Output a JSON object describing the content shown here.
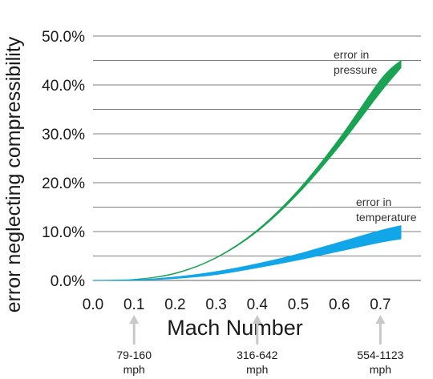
{
  "chart_data": {
    "type": "area",
    "xlabel": "Mach Number",
    "ylabel": "error neglecting compressibility",
    "xlim": [
      0,
      0.8
    ],
    "ylim": [
      0,
      50
    ],
    "x_ticks": [
      "0.0",
      "0.1",
      "0.2",
      "0.3",
      "0.4",
      "0.5",
      "0.6",
      "0.7"
    ],
    "y_ticks": [
      "0.0%",
      "10.0%",
      "20.0%",
      "30.0%",
      "40.0%",
      "50.0%"
    ],
    "grid": true,
    "series": [
      {
        "name": "error in pressure",
        "color": "#1aa353",
        "x": [
          0.0,
          0.1,
          0.2,
          0.3,
          0.4,
          0.5,
          0.6,
          0.7,
          0.75
        ],
        "lower": [
          0.0,
          0.2,
          1.4,
          4.6,
          10.0,
          17.8,
          27.5,
          38.5,
          43.5
        ],
        "upper": [
          0.0,
          0.2,
          1.5,
          4.7,
          10.3,
          18.5,
          29.0,
          41.0,
          45.0
        ]
      },
      {
        "name": "error in temperature",
        "color": "#11a6e8",
        "x": [
          0.0,
          0.1,
          0.2,
          0.3,
          0.4,
          0.5,
          0.6,
          0.7,
          0.75
        ],
        "lower": [
          0.0,
          0.05,
          0.4,
          1.2,
          2.6,
          4.2,
          6.0,
          7.8,
          8.5
        ],
        "upper": [
          0.0,
          0.1,
          0.7,
          1.8,
          3.4,
          5.4,
          7.8,
          10.2,
          11.2
        ]
      }
    ],
    "annotations": [
      {
        "lines": [
          "error in",
          "pressure"
        ]
      },
      {
        "lines": [
          "error in",
          "temperature"
        ]
      }
    ],
    "speed_markers": [
      {
        "mach": 0.1,
        "range": "79-160",
        "unit": "mph"
      },
      {
        "mach": 0.4,
        "range": "316-642",
        "unit": "mph"
      },
      {
        "mach": 0.7,
        "range": "554-1123",
        "unit": "mph"
      }
    ]
  }
}
